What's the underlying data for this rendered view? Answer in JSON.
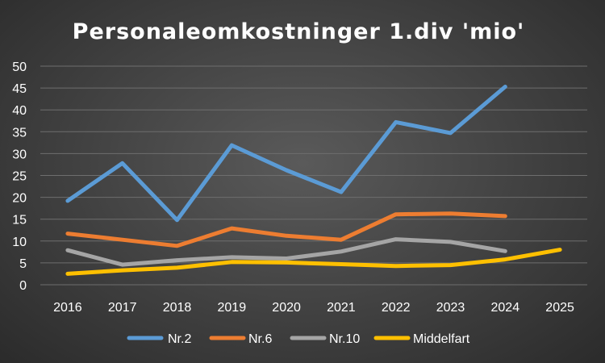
{
  "chart_data": {
    "type": "line",
    "title": "Personaleomkostninger 1.div 'mio'",
    "xlabel": "",
    "ylabel": "",
    "categories": [
      "2016",
      "2017",
      "2018",
      "2019",
      "2020",
      "2021",
      "2022",
      "2023",
      "2024",
      "2025"
    ],
    "ylim": [
      0,
      50
    ],
    "yticks": [
      0,
      5,
      10,
      15,
      20,
      25,
      30,
      35,
      40,
      45,
      50
    ],
    "grid": true,
    "legend_position": "bottom",
    "series": [
      {
        "name": "Nr.2",
        "color": "#5b9bd5",
        "values": [
          19.2,
          27.8,
          14.8,
          31.9,
          26.2,
          21.2,
          37.2,
          34.7,
          45.3,
          null
        ]
      },
      {
        "name": "Nr.6",
        "color": "#ed7d31",
        "values": [
          11.7,
          10.3,
          8.9,
          12.9,
          11.2,
          10.3,
          16.1,
          16.3,
          15.7,
          null
        ]
      },
      {
        "name": "Nr.10",
        "color": "#a5a5a5",
        "values": [
          7.9,
          4.6,
          5.6,
          6.3,
          6.0,
          7.6,
          10.4,
          9.8,
          7.7,
          null
        ]
      },
      {
        "name": "Middelfart",
        "color": "#ffc000",
        "values": [
          2.5,
          3.3,
          3.9,
          5.2,
          5.1,
          4.7,
          4.3,
          4.5,
          5.8,
          8.0
        ]
      }
    ]
  }
}
